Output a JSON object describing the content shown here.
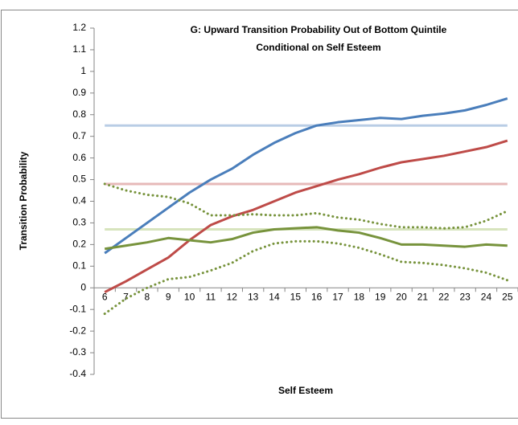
{
  "chart_data": {
    "type": "line",
    "title": [
      "G: Upward Transition Probability Out of Bottom Quintile",
      "Conditional on Self Esteem"
    ],
    "x_label": "Self Esteem",
    "y_label": "Transition Probability",
    "categories": [
      6,
      7,
      8,
      9,
      10,
      11,
      12,
      13,
      14,
      15,
      16,
      17,
      18,
      19,
      20,
      21,
      22,
      23,
      24,
      25
    ],
    "ylim": [
      -0.4,
      1.2
    ],
    "yticks": [
      -0.4,
      -0.3,
      -0.2,
      -0.1,
      0,
      0.1,
      0.2,
      0.3,
      0.4,
      0.5,
      0.6,
      0.7,
      0.8,
      0.9,
      1,
      1.1,
      1.2
    ],
    "series": [
      {
        "color": "#b9cde5",
        "style": "solid",
        "width": 3,
        "values": [
          0.75,
          0.75,
          0.75,
          0.75,
          0.75,
          0.75,
          0.75,
          0.75,
          0.75,
          0.75,
          0.75,
          0.75,
          0.75,
          0.75,
          0.75,
          0.75,
          0.75,
          0.75,
          0.75,
          0.75
        ]
      },
      {
        "color": "#e6b9b8",
        "style": "solid",
        "width": 3,
        "values": [
          0.48,
          0.48,
          0.48,
          0.48,
          0.48,
          0.48,
          0.48,
          0.48,
          0.48,
          0.48,
          0.48,
          0.48,
          0.48,
          0.48,
          0.48,
          0.48,
          0.48,
          0.48,
          0.48,
          0.48
        ]
      },
      {
        "color": "#d7e4bd",
        "style": "solid",
        "width": 3,
        "values": [
          0.27,
          0.27,
          0.27,
          0.27,
          0.27,
          0.27,
          0.27,
          0.27,
          0.27,
          0.27,
          0.27,
          0.27,
          0.27,
          0.27,
          0.27,
          0.27,
          0.27,
          0.27,
          0.27,
          0.27
        ]
      },
      {
        "color": "#4a7ebb",
        "style": "solid",
        "width": 3,
        "values": [
          0.16,
          0.23,
          0.3,
          0.37,
          0.44,
          0.5,
          0.55,
          0.615,
          0.67,
          0.715,
          0.75,
          0.765,
          0.775,
          0.785,
          0.78,
          0.795,
          0.805,
          0.82,
          0.845,
          0.875
        ]
      },
      {
        "color": "#be4b48",
        "style": "solid",
        "width": 3,
        "values": [
          -0.02,
          0.03,
          0.085,
          0.14,
          0.22,
          0.29,
          0.33,
          0.36,
          0.4,
          0.44,
          0.47,
          0.5,
          0.525,
          0.555,
          0.58,
          0.595,
          0.61,
          0.63,
          0.65,
          0.68
        ]
      },
      {
        "color": "#77933c",
        "style": "solid",
        "width": 3,
        "values": [
          0.18,
          0.195,
          0.21,
          0.23,
          0.22,
          0.21,
          0.225,
          0.255,
          0.27,
          0.275,
          0.28,
          0.265,
          0.255,
          0.23,
          0.2,
          0.2,
          0.195,
          0.19,
          0.2,
          0.195
        ]
      },
      {
        "color": "#77933c",
        "style": "dotted",
        "width": 3,
        "values": [
          0.48,
          0.45,
          0.43,
          0.42,
          0.39,
          0.335,
          0.335,
          0.34,
          0.335,
          0.335,
          0.345,
          0.325,
          0.315,
          0.295,
          0.28,
          0.28,
          0.275,
          0.28,
          0.31,
          0.355
        ]
      },
      {
        "color": "#77933c",
        "style": "dotted",
        "width": 3,
        "values": [
          -0.12,
          -0.05,
          0,
          0.04,
          0.05,
          0.08,
          0.115,
          0.17,
          0.205,
          0.215,
          0.215,
          0.205,
          0.185,
          0.155,
          0.12,
          0.115,
          0.105,
          0.09,
          0.07,
          0.035
        ]
      }
    ]
  }
}
